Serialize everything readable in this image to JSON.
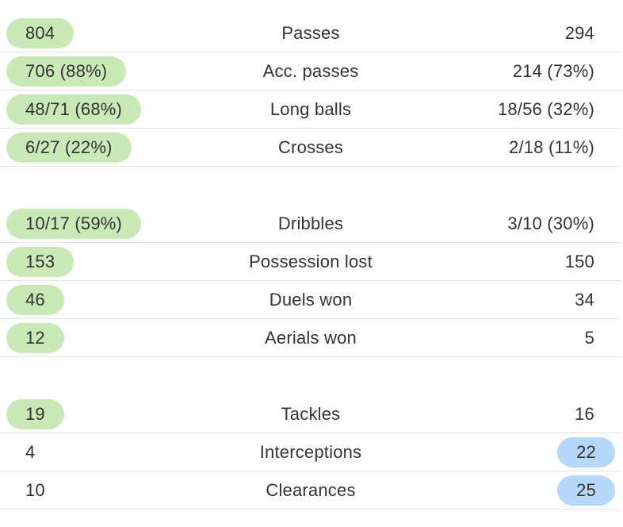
{
  "colors": {
    "home_highlight": "#c9e9b6",
    "away_highlight": "#b5d8fb",
    "divider": "#e3e3e3",
    "text": "#333333"
  },
  "groups": [
    {
      "rows": [
        {
          "label": "Passes",
          "home": "804",
          "away": "294",
          "winner": "home"
        },
        {
          "label": "Acc. passes",
          "home": "706 (88%)",
          "away": "214 (73%)",
          "winner": "home"
        },
        {
          "label": "Long balls",
          "home": "48/71 (68%)",
          "away": "18/56 (32%)",
          "winner": "home"
        },
        {
          "label": "Crosses",
          "home": "6/27 (22%)",
          "away": "2/18 (11%)",
          "winner": "home"
        }
      ]
    },
    {
      "rows": [
        {
          "label": "Dribbles",
          "home": "10/17 (59%)",
          "away": "3/10 (30%)",
          "winner": "home"
        },
        {
          "label": "Possession lost",
          "home": "153",
          "away": "150",
          "winner": "home"
        },
        {
          "label": "Duels won",
          "home": "46",
          "away": "34",
          "winner": "home"
        },
        {
          "label": "Aerials won",
          "home": "12",
          "away": "5",
          "winner": "home"
        }
      ]
    },
    {
      "rows": [
        {
          "label": "Tackles",
          "home": "19",
          "away": "16",
          "winner": "home"
        },
        {
          "label": "Interceptions",
          "home": "4",
          "away": "22",
          "winner": "away"
        },
        {
          "label": "Clearances",
          "home": "10",
          "away": "25",
          "winner": "away"
        }
      ]
    }
  ]
}
